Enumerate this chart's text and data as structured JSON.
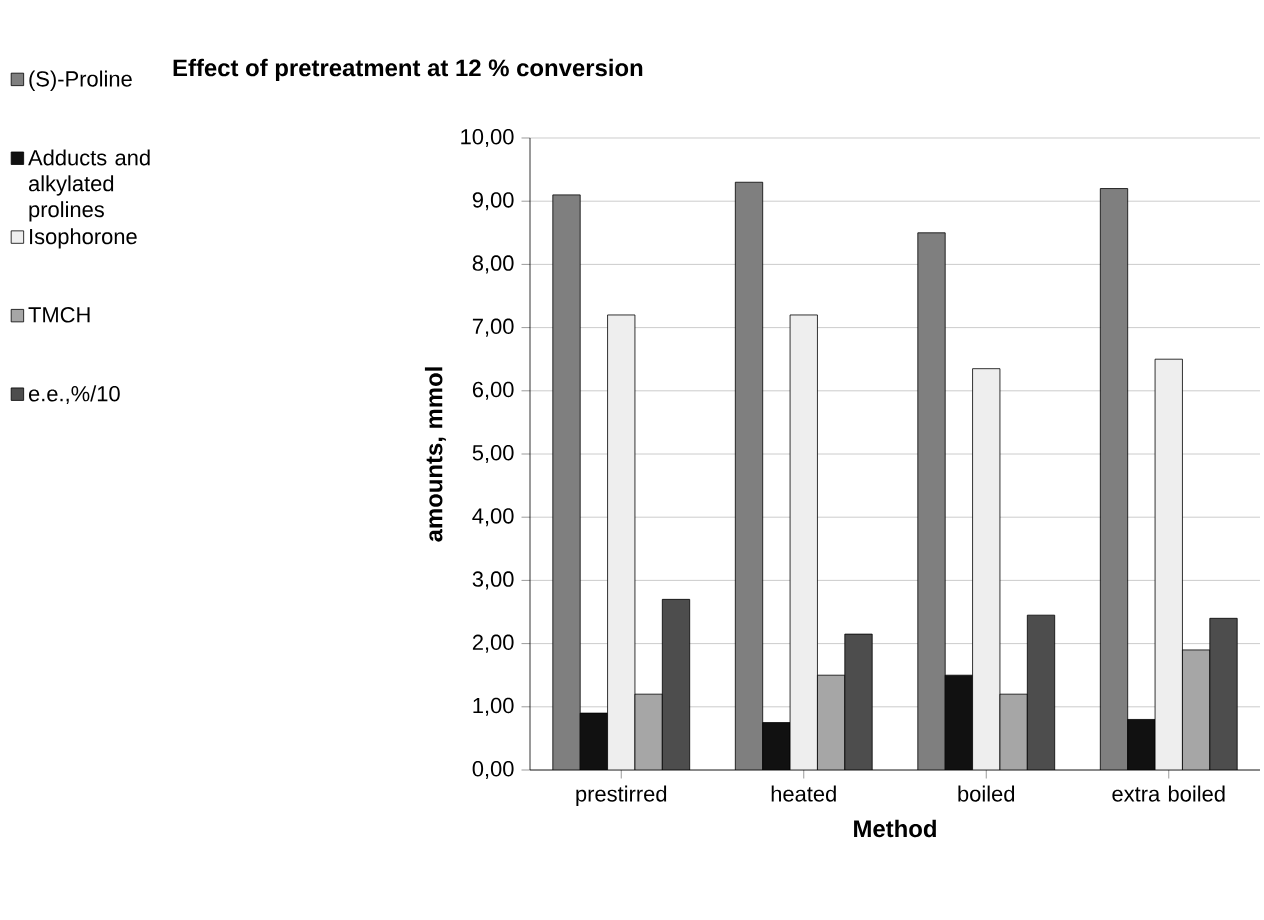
{
  "chart_data": {
    "type": "bar",
    "title": "Effect of pretreatment at 12 % conversion",
    "xlabel": "Method",
    "ylabel": "amounts, mmol",
    "categories": [
      "prestirred",
      "heated",
      "boiled",
      "extra boiled"
    ],
    "series": [
      {
        "name": "(S)-Proline",
        "color": "#7f7f7f",
        "values": [
          9.1,
          9.3,
          8.5,
          9.2
        ]
      },
      {
        "name": "Adducts and alkylated prolines",
        "color": "#111111",
        "values": [
          0.9,
          0.75,
          1.5,
          0.8
        ]
      },
      {
        "name": "Isophorone",
        "color": "#eeeeee",
        "values": [
          7.2,
          7.2,
          6.35,
          6.5
        ]
      },
      {
        "name": "TMCH",
        "color": "#a6a6a6",
        "values": [
          1.2,
          1.5,
          1.2,
          1.9
        ]
      },
      {
        "name": "e.e.,%/10",
        "color": "#4d4d4d",
        "values": [
          2.7,
          2.15,
          2.45,
          2.4
        ]
      }
    ],
    "ylim": [
      0,
      10
    ],
    "yticks": [
      {
        "value": 0,
        "label": "0,00"
      },
      {
        "value": 1,
        "label": "1,00"
      },
      {
        "value": 2,
        "label": "2,00"
      },
      {
        "value": 3,
        "label": "3,00"
      },
      {
        "value": 4,
        "label": "4,00"
      },
      {
        "value": 5,
        "label": "5,00"
      },
      {
        "value": 6,
        "label": "6,00"
      },
      {
        "value": 7,
        "label": "7,00"
      },
      {
        "value": 8,
        "label": "8,00"
      },
      {
        "value": 9,
        "label": "9,00"
      },
      {
        "value": 10,
        "label": "10,00"
      }
    ],
    "grid": "y",
    "legend": "left"
  }
}
